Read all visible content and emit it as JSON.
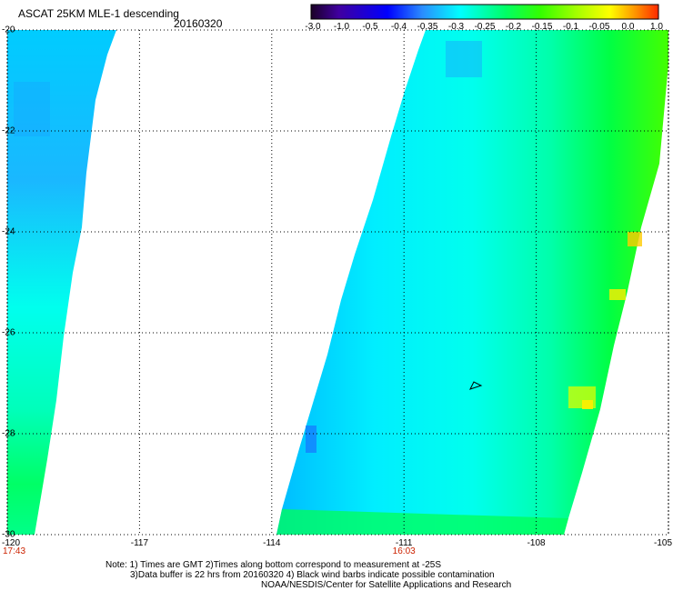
{
  "header": {
    "title": "ASCAT 25KM MLE-1 descending",
    "date": "20160320"
  },
  "colorbar": {
    "stops": [
      "#1a0026",
      "#4000a0",
      "#0000ff",
      "#2a8cff",
      "#00ffff",
      "#00ff66",
      "#33ff00",
      "#aaff00",
      "#ffff00",
      "#ff9900",
      "#ff2a00"
    ],
    "tick_labels": [
      "-3.0",
      "-1.0",
      "-0.5",
      "-0.4",
      "-0.35",
      "-0.3",
      "-0.25",
      "-0.2",
      "-0.15",
      "-0.1",
      "-0.05",
      "0.0",
      "1.0"
    ]
  },
  "map": {
    "lat_labels": [
      "-20",
      "-22",
      "-24",
      "-26",
      "-28",
      "-30"
    ],
    "lon_labels": [
      "-120",
      "-117",
      "-114",
      "-111",
      "-108",
      "-105"
    ],
    "lat_values": [
      -20,
      -22,
      -24,
      -26,
      -28,
      -30
    ],
    "lon_values": [
      -120,
      -117,
      -114,
      -111,
      -108,
      -105
    ],
    "time_labels": [
      {
        "text": "17:43",
        "lon": -120
      },
      {
        "text": "16:03",
        "lon": -111
      }
    ],
    "colors": {
      "grid": "#000000",
      "time_text": "#cc2200"
    }
  },
  "notes": {
    "line1": "Note: 1) Times are GMT 2)Times along bottom correspond to measurement at -25S",
    "line2": "3)Data buffer is 22 hrs from 20160320 4) Black wind barbs indicate possible contamination",
    "line3": "NOAA/NESDIS/Center for Satellite Applications and Research"
  }
}
